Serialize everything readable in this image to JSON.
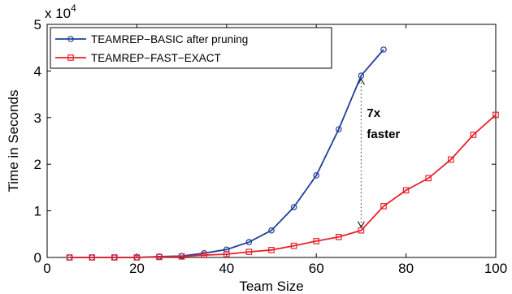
{
  "chart_data": {
    "type": "line",
    "xlabel": "Team Size",
    "ylabel": "Time in Seconds",
    "xlim": [
      0,
      100
    ],
    "ylim": [
      0,
      50000
    ],
    "xticks": [
      0,
      20,
      40,
      60,
      80,
      100
    ],
    "yticks": [
      0,
      1,
      2,
      3,
      4,
      5
    ],
    "y_multiplier": "x 10",
    "y_multiplier_exp": "4",
    "grid": false,
    "legend_position": "top-left",
    "series": [
      {
        "name": "TEAMREP−BASIC after pruning",
        "color": "#1f3f99",
        "marker": "circle",
        "x": [
          5,
          10,
          15,
          20,
          25,
          30,
          35,
          40,
          45,
          50,
          55,
          60,
          65,
          70,
          75
        ],
        "y": [
          0,
          0,
          0,
          0,
          200,
          300,
          900,
          1700,
          3300,
          5800,
          10800,
          17600,
          27500,
          39000,
          44600
        ]
      },
      {
        "name": "TEAMREP−FAST−EXACT",
        "color": "#e8212b",
        "marker": "square",
        "x": [
          5,
          10,
          15,
          20,
          25,
          30,
          35,
          40,
          45,
          50,
          55,
          60,
          65,
          70,
          75,
          80,
          85,
          90,
          95,
          100
        ],
        "y": [
          0,
          0,
          0,
          0,
          100,
          200,
          500,
          700,
          1200,
          1600,
          2500,
          3500,
          4400,
          5800,
          11000,
          14400,
          17000,
          21000,
          26300,
          30600
        ]
      }
    ],
    "annotations": [
      {
        "text_line1": "7x",
        "text_line2": "faster",
        "x": 70,
        "y_from": 5800,
        "y_to": 39000
      }
    ]
  }
}
